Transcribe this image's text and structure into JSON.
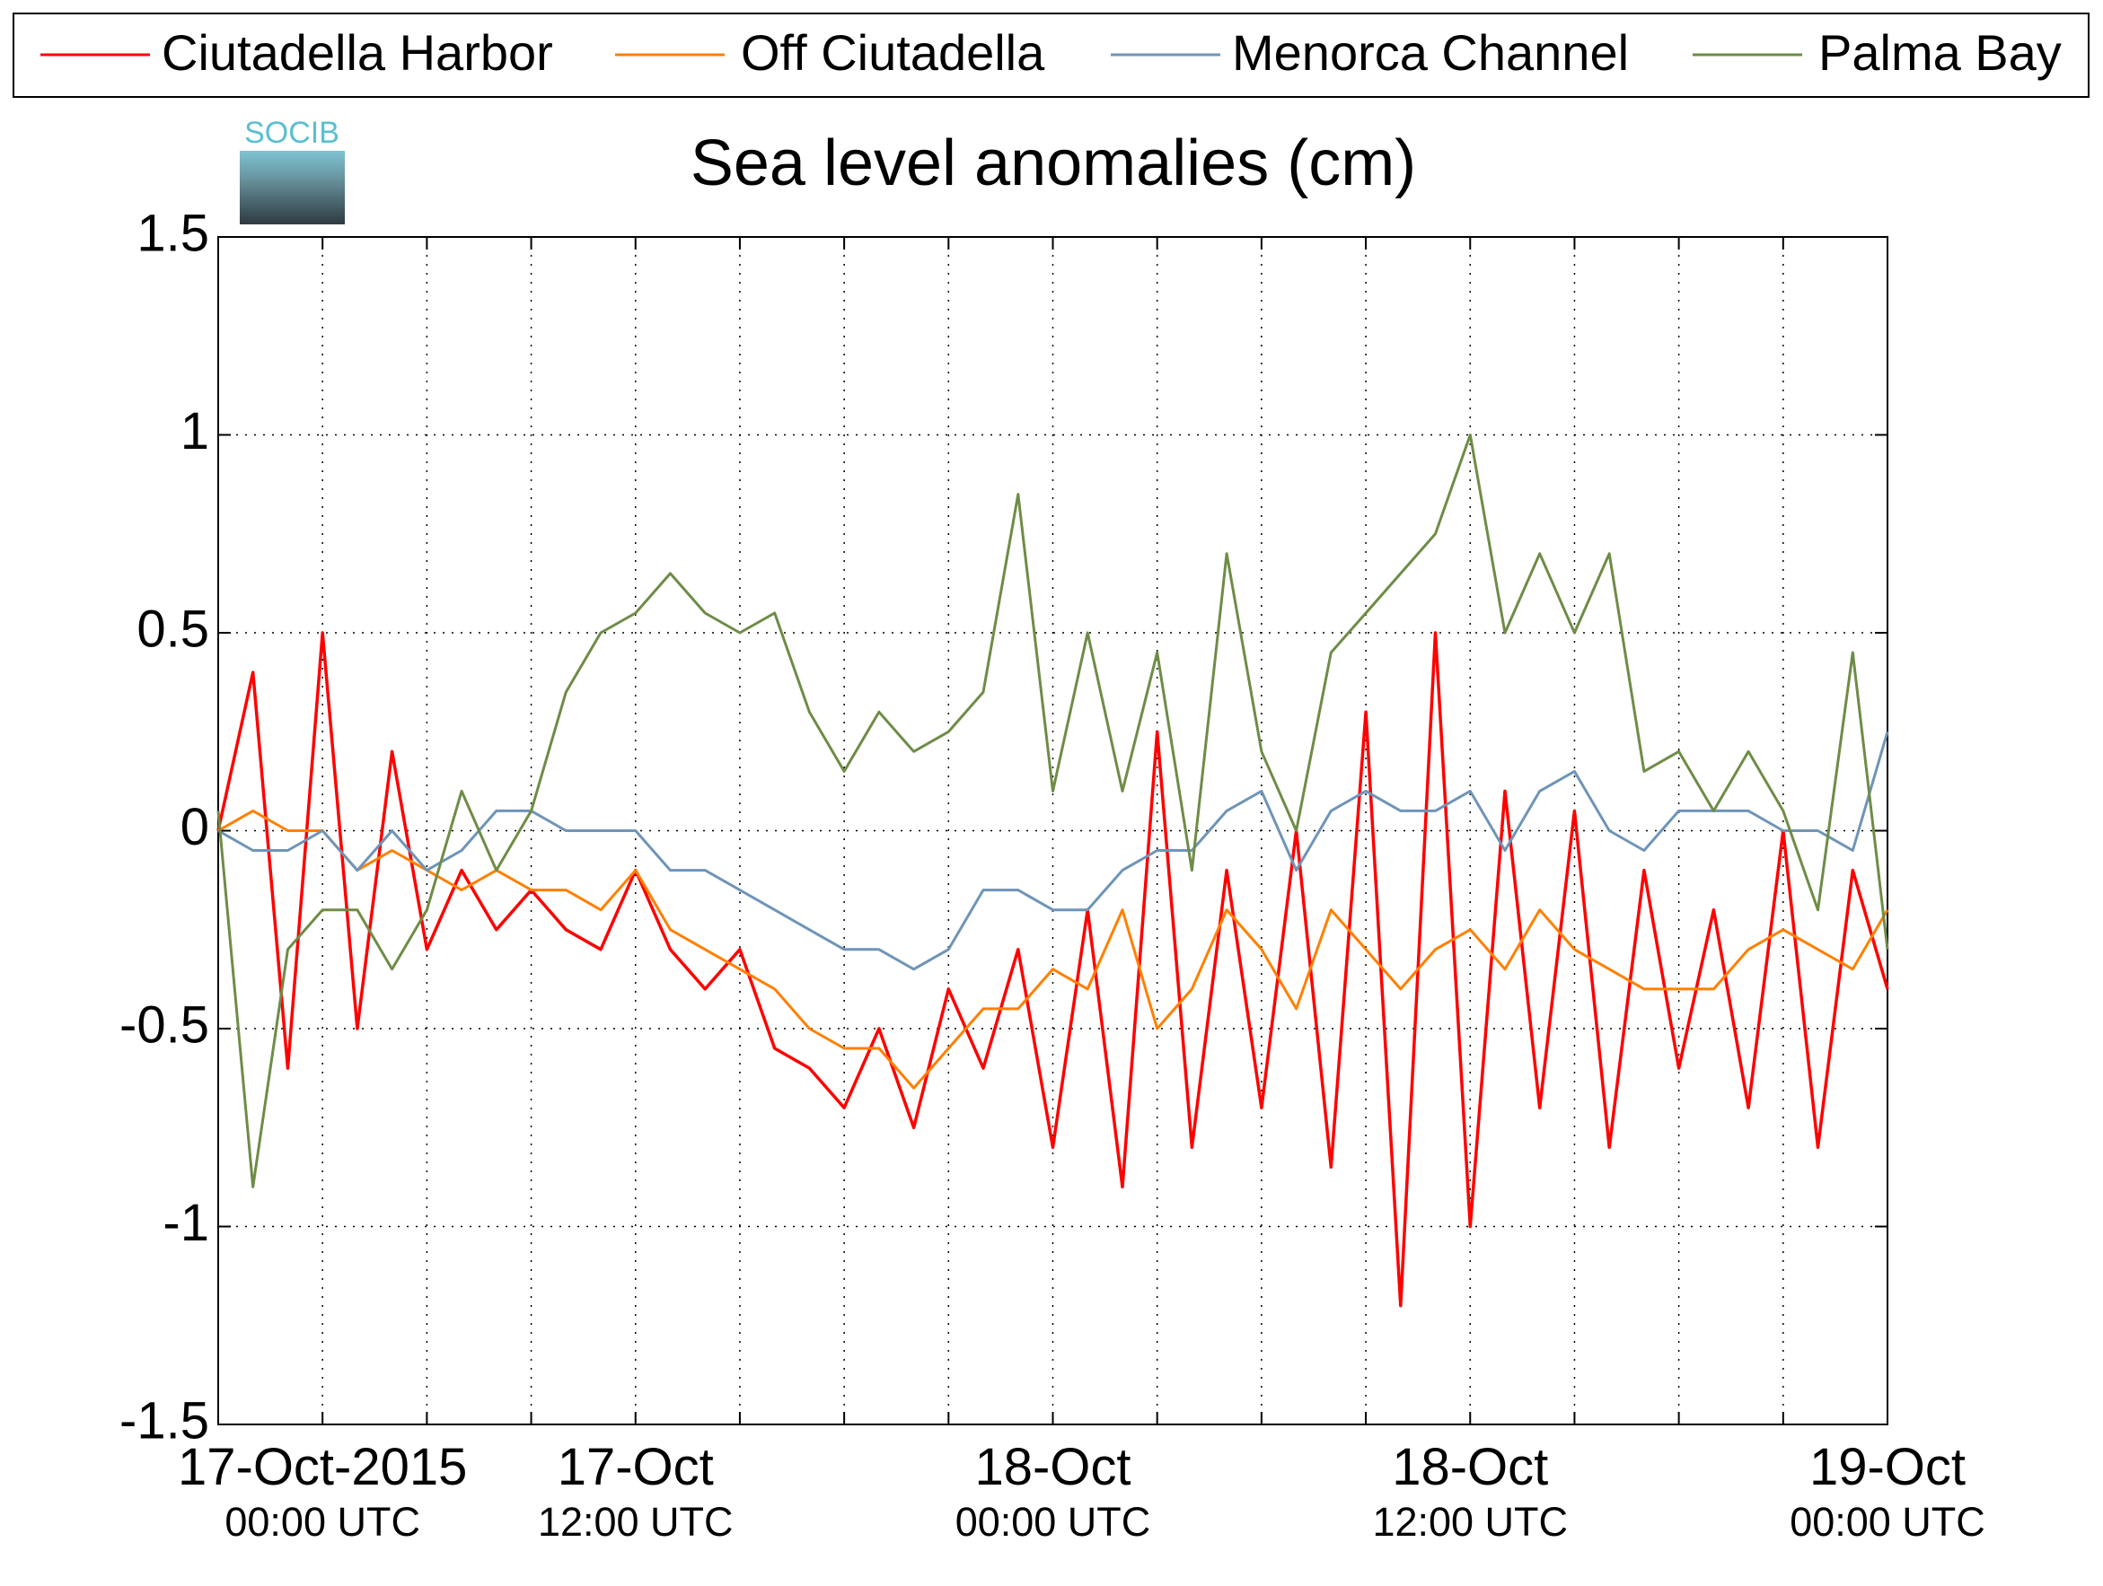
{
  "logo": "SOCIB",
  "chart_data": {
    "type": "line",
    "title": "Sea level anomalies (cm)",
    "x": [
      0,
      1,
      2,
      3,
      4,
      5,
      6,
      7,
      8,
      9,
      10,
      11,
      12,
      13,
      14,
      15,
      16,
      17,
      18,
      19,
      20,
      21,
      22,
      23,
      24,
      25,
      26,
      27,
      28,
      29,
      30,
      31,
      32,
      33,
      34,
      35,
      36,
      37,
      38,
      39,
      40,
      41,
      42,
      43,
      44,
      45,
      46,
      47,
      48
    ],
    "xlim": [
      0,
      48
    ],
    "xticks": [
      {
        "value": 3,
        "label": "17-Oct-2015\n00:00 UTC"
      },
      {
        "value": 12,
        "label": "17-Oct\n12:00 UTC"
      },
      {
        "value": 24,
        "label": "18-Oct\n00:00 UTC"
      },
      {
        "value": 36,
        "label": "18-Oct\n12:00 UTC"
      },
      {
        "value": 48,
        "label": "19-Oct\n00:00 UTC"
      }
    ],
    "xminor_ticks": [
      0,
      6,
      9,
      15,
      18,
      21,
      27,
      30,
      33,
      39,
      42,
      45
    ],
    "ylim": [
      -1.5,
      1.5
    ],
    "yticks": [
      -1.5,
      -1,
      -0.5,
      0,
      0.5,
      1,
      1.5
    ],
    "grid": true,
    "legend": "top",
    "series": [
      {
        "name": "Ciutadella Harbor",
        "color": "#ff0000",
        "values": [
          0.0,
          0.4,
          -0.6,
          0.5,
          -0.5,
          0.2,
          -0.3,
          -0.1,
          -0.25,
          -0.15,
          -0.25,
          -0.3,
          -0.1,
          -0.3,
          -0.4,
          -0.3,
          -0.55,
          -0.6,
          -0.7,
          -0.5,
          -0.75,
          -0.4,
          -0.6,
          -0.3,
          -0.8,
          -0.2,
          -0.9,
          0.25,
          -0.8,
          -0.1,
          -0.7,
          0.0,
          -0.85,
          0.3,
          -1.2,
          0.5,
          -1.0,
          0.1,
          -0.7,
          0.05,
          -0.8,
          -0.1,
          -0.6,
          -0.2,
          -0.7,
          0.0,
          -0.8,
          -0.1,
          -0.4
        ]
      },
      {
        "name": "Off Ciutadella",
        "color": "#ff8000",
        "values": [
          0.0,
          0.05,
          0.0,
          0.0,
          -0.1,
          -0.05,
          -0.1,
          -0.15,
          -0.1,
          -0.15,
          -0.15,
          -0.2,
          -0.1,
          -0.25,
          -0.3,
          -0.35,
          -0.4,
          -0.5,
          -0.55,
          -0.55,
          -0.65,
          -0.55,
          -0.45,
          -0.45,
          -0.35,
          -0.4,
          -0.2,
          -0.5,
          -0.4,
          -0.2,
          -0.3,
          -0.45,
          -0.2,
          -0.3,
          -0.4,
          -0.3,
          -0.25,
          -0.35,
          -0.2,
          -0.3,
          -0.35,
          -0.4,
          -0.4,
          -0.4,
          -0.3,
          -0.25,
          -0.3,
          -0.35,
          -0.2
        ]
      },
      {
        "name": "Menorca Channel",
        "color": "#6f94b8",
        "values": [
          0.0,
          -0.05,
          -0.05,
          0.0,
          -0.1,
          0.0,
          -0.1,
          -0.05,
          0.05,
          0.05,
          0.0,
          0.0,
          0.0,
          -0.1,
          -0.1,
          -0.15,
          -0.2,
          -0.25,
          -0.3,
          -0.3,
          -0.35,
          -0.3,
          -0.15,
          -0.15,
          -0.2,
          -0.2,
          -0.1,
          -0.05,
          -0.05,
          0.05,
          0.1,
          -0.1,
          0.05,
          0.1,
          0.05,
          0.05,
          0.1,
          -0.05,
          0.1,
          0.15,
          0.0,
          -0.05,
          0.05,
          0.05,
          0.05,
          0.0,
          0.0,
          -0.05,
          0.25
        ]
      },
      {
        "name": "Palma Bay",
        "color": "#6e8c46",
        "values": [
          0.05,
          -0.9,
          -0.3,
          -0.2,
          -0.2,
          -0.35,
          -0.2,
          0.1,
          -0.1,
          0.05,
          0.35,
          0.5,
          0.55,
          0.65,
          0.55,
          0.5,
          0.55,
          0.3,
          0.15,
          0.3,
          0.2,
          0.25,
          0.35,
          0.85,
          0.1,
          0.5,
          0.1,
          0.45,
          -0.1,
          0.7,
          0.2,
          0.0,
          0.45,
          0.55,
          0.65,
          0.75,
          1.0,
          0.5,
          0.7,
          0.5,
          0.7,
          0.15,
          0.2,
          0.05,
          0.2,
          0.05,
          -0.2,
          0.45,
          -0.3
        ]
      }
    ]
  }
}
